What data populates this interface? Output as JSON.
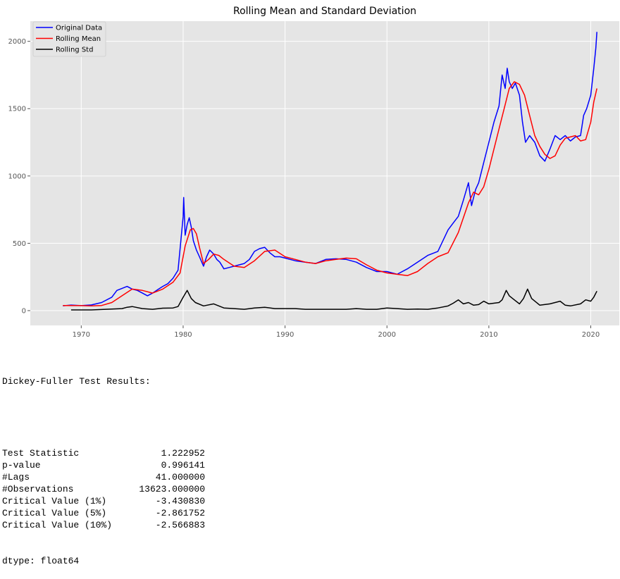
{
  "chart_data": {
    "type": "line",
    "title": "Rolling Mean and Standard Deviation",
    "xlabel": "",
    "ylabel": "",
    "xlim": [
      1965.0,
      2022.8
    ],
    "ylim": [
      -110,
      2150
    ],
    "x_ticks": [
      1970,
      1980,
      1990,
      2000,
      2010,
      2020
    ],
    "y_ticks": [
      0,
      500,
      1000,
      1500,
      2000
    ],
    "grid": true,
    "legend_position": "top-left",
    "background": "#e5e5e5",
    "series": [
      {
        "name": "Original Data",
        "color": "#0000ff",
        "x": [
          1968.2,
          1969,
          1970,
          1971,
          1972,
          1973,
          1973.5,
          1974,
          1974.5,
          1975,
          1975.5,
          1976,
          1976.5,
          1977,
          1977.5,
          1978,
          1978.5,
          1979,
          1979.5,
          1980,
          1980.05,
          1980.2,
          1980.4,
          1980.6,
          1980.8,
          1981,
          1981.3,
          1981.6,
          1982,
          1982.3,
          1982.6,
          1983,
          1983.3,
          1983.6,
          1984,
          1984.5,
          1985,
          1985.5,
          1986,
          1986.5,
          1987,
          1987.5,
          1988,
          1988.5,
          1989,
          1989.5,
          1990,
          1990.5,
          1991,
          1992,
          1993,
          1994,
          1995,
          1996,
          1997,
          1998,
          1999,
          2000,
          2001,
          2002,
          2003,
          2004,
          2005,
          2006,
          2006.5,
          2007,
          2007.5,
          2008,
          2008.3,
          2008.7,
          2009,
          2009.5,
          2010,
          2010.5,
          2011,
          2011.3,
          2011.6,
          2011.8,
          2012,
          2012.3,
          2012.6,
          2013,
          2013.3,
          2013.6,
          2014,
          2014.5,
          2015,
          2015.5,
          2016,
          2016.5,
          2017,
          2017.5,
          2018,
          2018.5,
          2019,
          2019.3,
          2019.6,
          2020,
          2020.3,
          2020.5,
          2020.6
        ],
        "y": [
          36,
          41,
          37,
          42,
          60,
          100,
          150,
          165,
          180,
          160,
          150,
          130,
          110,
          130,
          155,
          180,
          200,
          240,
          300,
          700,
          840,
          560,
          640,
          690,
          620,
          520,
          450,
          400,
          330,
          400,
          450,
          420,
          380,
          360,
          310,
          320,
          330,
          340,
          350,
          380,
          440,
          460,
          470,
          430,
          400,
          400,
          390,
          380,
          370,
          360,
          350,
          380,
          385,
          380,
          360,
          320,
          290,
          290,
          270,
          310,
          360,
          410,
          440,
          600,
          650,
          700,
          820,
          950,
          780,
          900,
          950,
          1100,
          1250,
          1400,
          1520,
          1750,
          1650,
          1800,
          1700,
          1650,
          1690,
          1600,
          1400,
          1250,
          1300,
          1250,
          1150,
          1110,
          1200,
          1300,
          1270,
          1300,
          1260,
          1290,
          1300,
          1450,
          1500,
          1600,
          1800,
          1950,
          2070
        ]
      },
      {
        "name": "Rolling Mean",
        "color": "#ff0000",
        "x": [
          1968.2,
          1970,
          1971,
          1972,
          1973,
          1974,
          1975,
          1976,
          1977,
          1978,
          1979,
          1979.7,
          1980.2,
          1980.7,
          1981,
          1981.3,
          1981.6,
          1982,
          1982.5,
          1983,
          1983.5,
          1984,
          1985,
          1986,
          1987,
          1988,
          1989,
          1990,
          1991,
          1992,
          1993,
          1994,
          1995,
          1996,
          1997,
          1998,
          1999,
          2000,
          2001,
          2002,
          2003,
          2004,
          2005,
          2006,
          2007,
          2008,
          2008.5,
          2009,
          2009.5,
          2010,
          2010.5,
          2011,
          2011.5,
          2012,
          2012.5,
          2013,
          2013.5,
          2014,
          2014.5,
          2015,
          2015.5,
          2016,
          2016.5,
          2017,
          2017.5,
          2018,
          2018.5,
          2019,
          2019.5,
          2020,
          2020.3,
          2020.6
        ],
        "y": [
          38,
          37,
          35,
          38,
          60,
          110,
          160,
          150,
          130,
          160,
          210,
          280,
          480,
          600,
          610,
          570,
          470,
          350,
          380,
          420,
          410,
          380,
          330,
          320,
          370,
          440,
          450,
          400,
          380,
          360,
          350,
          370,
          380,
          390,
          385,
          340,
          300,
          280,
          270,
          260,
          290,
          350,
          400,
          430,
          580,
          800,
          880,
          860,
          920,
          1050,
          1200,
          1350,
          1500,
          1650,
          1700,
          1680,
          1600,
          1450,
          1300,
          1220,
          1160,
          1130,
          1150,
          1230,
          1280,
          1290,
          1300,
          1260,
          1270,
          1400,
          1550,
          1650
        ]
      },
      {
        "name": "Rolling Std",
        "color": "#000000",
        "x": [
          1969,
          1971,
          1972,
          1973,
          1974,
          1974.5,
          1975,
          1976,
          1977,
          1978,
          1979,
          1979.5,
          1980,
          1980.4,
          1980.8,
          1981.2,
          1982,
          1983,
          1984,
          1985,
          1986,
          1987,
          1988,
          1989,
          1990,
          1991,
          1992,
          1993,
          1994,
          1995,
          1996,
          1997,
          1998,
          1999,
          2000,
          2001,
          2002,
          2003,
          2004,
          2005,
          2006,
          2006.5,
          2007,
          2007.5,
          2008,
          2008.5,
          2009,
          2009.5,
          2010,
          2011,
          2011.3,
          2011.7,
          2012,
          2012.5,
          2013,
          2013.4,
          2013.8,
          2014.2,
          2015,
          2016,
          2017,
          2017.5,
          2018,
          2019,
          2019.5,
          2020,
          2020.3,
          2020.6
        ],
        "y": [
          5,
          5,
          8,
          12,
          15,
          25,
          30,
          15,
          10,
          18,
          20,
          30,
          100,
          150,
          90,
          60,
          35,
          50,
          20,
          15,
          10,
          20,
          25,
          15,
          15,
          15,
          10,
          10,
          10,
          10,
          10,
          15,
          10,
          10,
          20,
          15,
          10,
          12,
          10,
          20,
          35,
          55,
          80,
          50,
          60,
          40,
          45,
          70,
          50,
          60,
          80,
          150,
          110,
          80,
          50,
          90,
          160,
          90,
          40,
          50,
          70,
          40,
          35,
          50,
          80,
          70,
          100,
          145
        ]
      }
    ]
  },
  "output": {
    "header": "Dickey-Fuller Test Results:",
    "rows": [
      {
        "label": "Test Statistic",
        "value": "1.222952"
      },
      {
        "label": "p-value",
        "value": "0.996141"
      },
      {
        "label": "#Lags",
        "value": "41.000000"
      },
      {
        "label": "#Observations",
        "value": "13623.000000"
      },
      {
        "label": "Critical Value (1%)",
        "value": "-3.430830"
      },
      {
        "label": "Critical Value (5%)",
        "value": "-2.861752"
      },
      {
        "label": "Critical Value (10%)",
        "value": "-2.566883"
      }
    ],
    "dtype": "dtype: float64"
  }
}
